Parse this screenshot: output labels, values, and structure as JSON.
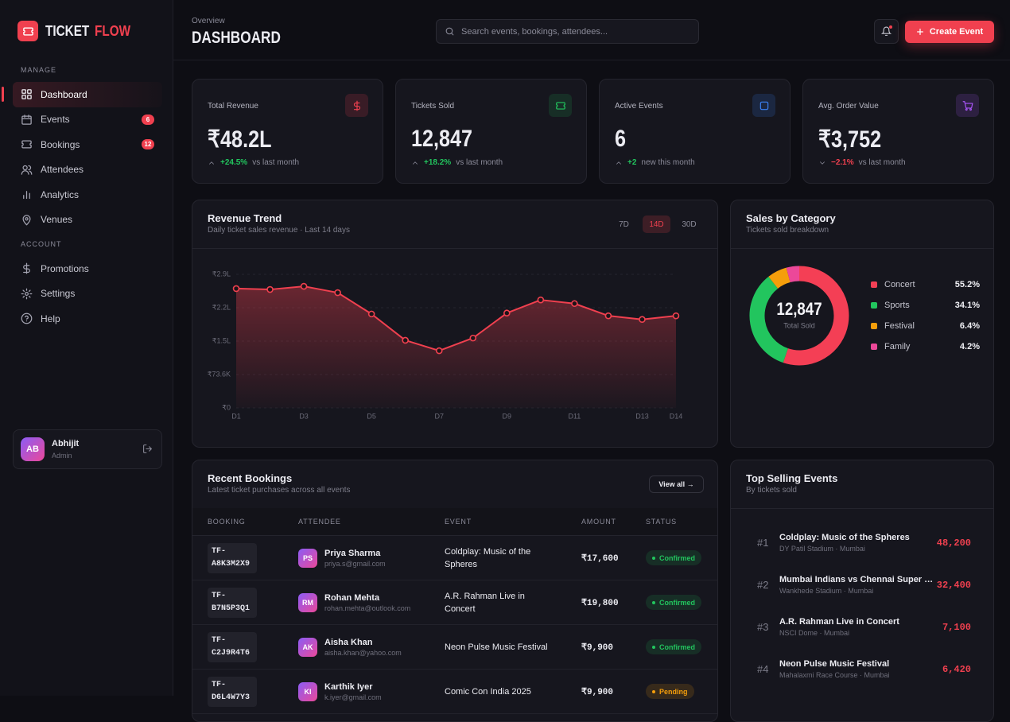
{
  "sidebar": {
    "brand": {
      "primary": "TICKET",
      "accent": "FLOW"
    },
    "sections": [
      {
        "label": "MANAGE",
        "items": [
          {
            "label": "Dashboard",
            "active": true
          },
          {
            "label": "Events",
            "badge": 6
          },
          {
            "label": "Bookings",
            "badge": 12
          },
          {
            "label": "Attendees"
          },
          {
            "label": "Analytics"
          },
          {
            "label": "Venues"
          }
        ]
      },
      {
        "label": "ACCOUNT",
        "items": [
          {
            "label": "Promotions"
          },
          {
            "label": "Settings"
          },
          {
            "label": "Help"
          }
        ]
      }
    ],
    "user": {
      "initials": "AB",
      "name": "Abhijit",
      "role": "Admin"
    }
  },
  "header": {
    "overline": "Overview",
    "title": "DASHBOARD",
    "search_placeholder": "Search events, bookings, attendees...",
    "create_button": "Create Event"
  },
  "stats": [
    {
      "label": "Total Revenue",
      "value": "₹48.2L",
      "change": "+24.5%",
      "note": "vs last month",
      "trend": "up"
    },
    {
      "label": "Tickets Sold",
      "value": "12,847",
      "change": "+18.2%",
      "note": "vs last month",
      "trend": "up"
    },
    {
      "label": "Active Events",
      "value": "6",
      "change": "+2",
      "note": "new this month",
      "trend": "up"
    },
    {
      "label": "Avg. Order Value",
      "value": "₹3,752",
      "change": "−2.1%",
      "note": "vs last month",
      "trend": "down"
    }
  ],
  "revenue_ranges": {
    "options": [
      "7D",
      "14D",
      "30D"
    ],
    "active": 1
  },
  "chart_data": [
    {
      "type": "line",
      "title": "Revenue Trend",
      "subtitle": "Daily ticket sales revenue · Last 14 days",
      "categories": [
        "D1",
        null,
        "D3",
        null,
        "D5",
        null,
        "D7",
        null,
        "D9",
        null,
        "D11",
        null,
        "D13",
        "D14"
      ],
      "values": [
        263000,
        261000,
        268000,
        254000,
        207000,
        149000,
        126000,
        154000,
        209000,
        238000,
        230000,
        203000,
        195000,
        203000
      ],
      "color": "#f0404f",
      "ylim": [
        0,
        294400
      ],
      "yticks": [
        {
          "value": 0,
          "label": "₹0"
        },
        {
          "value": 73600,
          "label": "₹73.6K"
        },
        {
          "value": 147200,
          "label": "₹1.5L"
        },
        {
          "value": 220800,
          "label": "₹2.2L"
        },
        {
          "value": 294400,
          "label": "₹2.9L"
        }
      ],
      "grid": true
    },
    {
      "type": "donut",
      "title": "Sales by Category",
      "subtitle": "Tickets sold breakdown",
      "center_value": "12,847",
      "center_label": "Total Sold",
      "categories": [
        "Concert",
        "Sports",
        "Festival",
        "Family"
      ],
      "values": [
        55.2,
        34.1,
        6.4,
        4.2
      ],
      "value_labels": [
        "55.2%",
        "34.1%",
        "6.4%",
        "4.2%"
      ],
      "colors": [
        "#f43f55",
        "#22c55e",
        "#f59e0b",
        "#ec4899"
      ]
    }
  ],
  "recent_bookings": {
    "title": "Recent Bookings",
    "subtitle": "Latest ticket purchases across all events",
    "action": "View all →",
    "columns": [
      "BOOKING",
      "ATTENDEE",
      "EVENT",
      "AMOUNT",
      "STATUS"
    ],
    "rows": [
      {
        "id": "TF-A8K3M2X9",
        "initials": "PS",
        "name": "Priya Sharma",
        "email": "priya.s@gmail.com",
        "event": "Coldplay: Music of the Spheres",
        "amount": "₹17,600",
        "status": "Confirmed",
        "status_tone": "success"
      },
      {
        "id": "TF-B7N5P3Q1",
        "initials": "RM",
        "name": "Rohan Mehta",
        "email": "rohan.mehta@outlook.com",
        "event": "A.R. Rahman Live in Concert",
        "amount": "₹19,800",
        "status": "Confirmed",
        "status_tone": "success"
      },
      {
        "id": "TF-C2J9R4T6",
        "initials": "AK",
        "name": "Aisha Khan",
        "email": "aisha.khan@yahoo.com",
        "event": "Neon Pulse Music Festival",
        "amount": "₹9,900",
        "status": "Confirmed",
        "status_tone": "success"
      },
      {
        "id": "TF-D6L4W7Y3",
        "initials": "KI",
        "name": "Karthik Iyer",
        "email": "k.iyer@gmail.com",
        "event": "Comic Con India 2025",
        "amount": "₹9,900",
        "status": "Pending",
        "status_tone": "warning"
      }
    ]
  },
  "top_events": {
    "title": "Top Selling Events",
    "subtitle": "By tickets sold",
    "items": [
      {
        "rank": "#1",
        "name": "Coldplay: Music of the Spheres",
        "venue": "DY Patil Stadium · Mumbai",
        "sold": "48,200"
      },
      {
        "rank": "#2",
        "name": "Mumbai Indians vs Chennai Super Kings",
        "venue": "Wankhede Stadium · Mumbai",
        "sold": "32,400"
      },
      {
        "rank": "#3",
        "name": "A.R. Rahman Live in Concert",
        "venue": "NSCI Dome · Mumbai",
        "sold": "7,100"
      },
      {
        "rank": "#4",
        "name": "Neon Pulse Music Festival",
        "venue": "Mahalaxmi Race Course · Mumbai",
        "sold": "6,420"
      }
    ]
  }
}
